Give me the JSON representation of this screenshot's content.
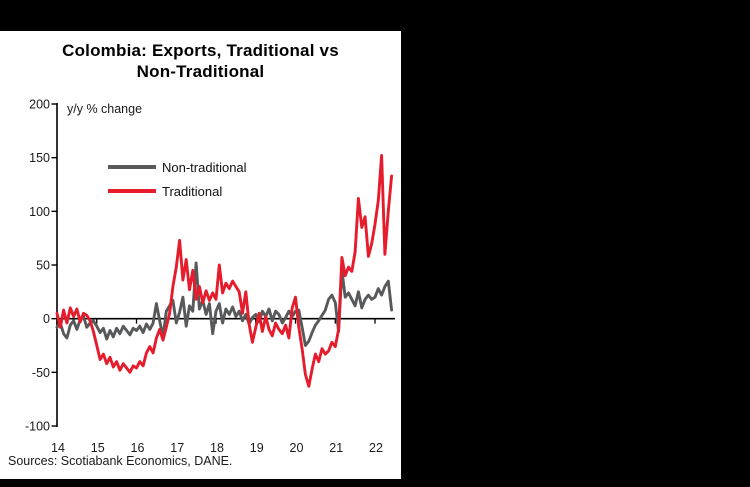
{
  "title_lines": [
    "Colombia: Exports, Traditional vs",
    "Non-Traditional"
  ],
  "sources_note": "Sources: Scotiabank Economics, DANE.",
  "legend": {
    "items": [
      {
        "label": "Non-traditional",
        "color": "#58595b"
      },
      {
        "label": "Traditional",
        "color": "#e61b2b"
      }
    ]
  },
  "colors": {
    "background": "#000000",
    "card": "#ffffff",
    "axis": "#000000",
    "non_traditional": "#58595b",
    "traditional": "#e61b2b"
  },
  "chart_data": {
    "type": "line",
    "title": "Colombia: Exports, Traditional vs Non-Traditional",
    "ylabel": "y/y % change",
    "xlabel": "",
    "ylim": [
      -100,
      200
    ],
    "yticks": [
      200,
      150,
      100,
      50,
      0,
      -50,
      -100
    ],
    "ytick_labels": [
      "200",
      "150",
      "100",
      "50",
      "0",
      "-50",
      "-100"
    ],
    "x_year_labels": [
      "14",
      "15",
      "16",
      "17",
      "18",
      "19",
      "20",
      "21",
      "22"
    ],
    "x_start": "2014-01",
    "x_end": "2022-06",
    "frequency": "monthly",
    "grid": false,
    "legend_position": "upper-left-inside",
    "zero_axis_line": true,
    "series": [
      {
        "name": "Non-traditional",
        "color": "#58595b",
        "values": [
          -8,
          -4,
          -14,
          -18,
          -6,
          -2,
          -10,
          -1,
          2,
          -8,
          -4,
          -2,
          -7,
          -13,
          -9,
          -19,
          -11,
          -17,
          -9,
          -14,
          -7,
          -11,
          -15,
          -9,
          -11,
          -7,
          -13,
          -5,
          -10,
          -4,
          14,
          -2,
          -17,
          7,
          12,
          17,
          -4,
          6,
          20,
          -7,
          12,
          7,
          52,
          9,
          17,
          4,
          14,
          -14,
          7,
          14,
          -4,
          9,
          4,
          11,
          2,
          7,
          -2,
          4,
          -5,
          1,
          4,
          -3,
          7,
          2,
          9,
          -2,
          7,
          4,
          -4,
          1,
          7,
          2,
          7,
          8,
          -8,
          -25,
          -21,
          -13,
          -6,
          -2,
          3,
          8,
          18,
          22,
          15,
          -12,
          45,
          20,
          24,
          18,
          12,
          25,
          10,
          18,
          22,
          18,
          20,
          28,
          22,
          30,
          35,
          8
        ]
      },
      {
        "name": "Traditional",
        "color": "#e61b2b",
        "values": [
          5,
          -8,
          8,
          -4,
          10,
          2,
          9,
          -3,
          5,
          3,
          -2,
          -12,
          -25,
          -38,
          -33,
          -42,
          -36,
          -45,
          -40,
          -48,
          -42,
          -46,
          -50,
          -44,
          -46,
          -40,
          -44,
          -32,
          -26,
          -32,
          -18,
          -10,
          -20,
          -8,
          5,
          30,
          48,
          73,
          36,
          55,
          27,
          45,
          18,
          30,
          15,
          26,
          17,
          24,
          18,
          50,
          24,
          33,
          28,
          35,
          30,
          25,
          5,
          25,
          -5,
          -22,
          -8,
          5,
          -12,
          2,
          -10,
          -16,
          -4,
          -10,
          -14,
          -6,
          -18,
          10,
          20,
          -8,
          -28,
          -52,
          -63,
          -47,
          -33,
          -40,
          -28,
          -33,
          -30,
          -22,
          -26,
          -10,
          57,
          40,
          48,
          44,
          62,
          112,
          85,
          95,
          58,
          70,
          88,
          110,
          152,
          60,
          100,
          133
        ]
      }
    ]
  }
}
